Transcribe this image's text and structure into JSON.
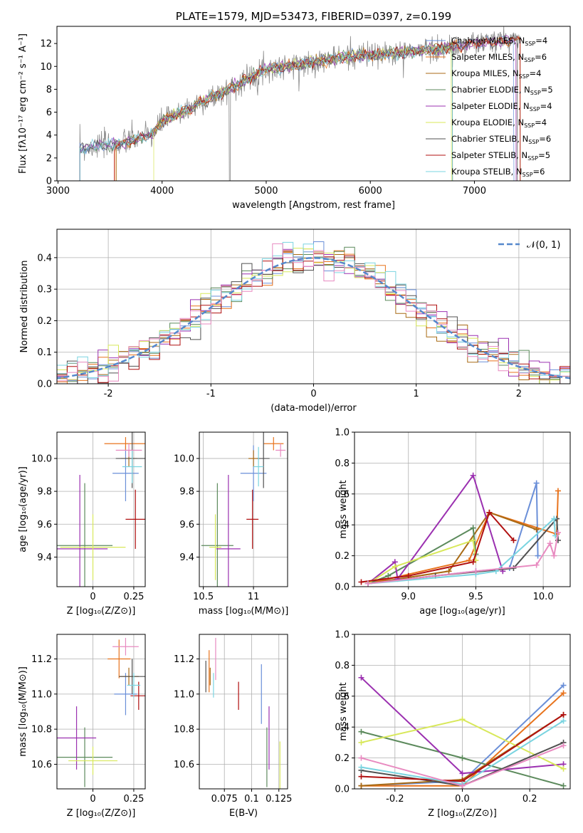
{
  "colors": {
    "Chabrier MILES": "#6a8fd8",
    "Salpeter MILES": "#e8731c",
    "Kroupa MILES": "#a86a14",
    "Chabrier ELODIE": "#5c8a5c",
    "Salpeter ELODIE": "#9b30b0",
    "Kroupa ELODIE": "#d8e85a",
    "Chabrier STELIB": "#505050",
    "Salpeter STELIB": "#b01010",
    "Kroupa STELIB": "#7ad4e0",
    "Extra pink": "#e88ac0",
    "Data gray": "#8a8a8a",
    "Normal": "#5588cc"
  },
  "chart_data": [
    {
      "id": "spectrum",
      "type": "line",
      "title": "PLATE=1579, MJD=53473, FIBERID=0397, z=0.199",
      "xlabel": "wavelength [Angstrom, rest frame]",
      "ylabel": "Flux [fλ10⁻¹⁷ erg cm⁻² s⁻¹ A⁻¹]",
      "xlim": [
        2990,
        7920
      ],
      "ylim": [
        0,
        13.5
      ],
      "xticks": [
        3000,
        4000,
        5000,
        6000,
        7000
      ],
      "yticks": [
        0,
        2,
        4,
        6,
        8,
        10,
        12
      ],
      "grid": false,
      "legend_position": "right",
      "legend": [
        {
          "label": "Chabrier MILES, N",
          "sub": "SSP",
          "suffix": "=4"
        },
        {
          "label": "Salpeter MILES, N",
          "sub": "SSP",
          "suffix": "=6"
        },
        {
          "label": "Kroupa MILES, N",
          "sub": "SSP",
          "suffix": "=4"
        },
        {
          "label": "Chabrier ELODIE, N",
          "sub": "SSP",
          "suffix": "=5"
        },
        {
          "label": "Salpeter ELODIE, N",
          "sub": "SSP",
          "suffix": "=4"
        },
        {
          "label": "Kroupa ELODIE, N",
          "sub": "SSP",
          "suffix": "=4"
        },
        {
          "label": "Chabrier STELIB, N",
          "sub": "SSP",
          "suffix": "=6"
        },
        {
          "label": "Salpeter STELIB, N",
          "sub": "SSP",
          "suffix": "=5"
        },
        {
          "label": "Kroupa STELIB, N",
          "sub": "SSP",
          "suffix": "=6"
        }
      ],
      "continuum": [
        [
          3200,
          2.8
        ],
        [
          3400,
          3.1
        ],
        [
          3600,
          3.2
        ],
        [
          3700,
          3.5
        ],
        [
          3800,
          3.8
        ],
        [
          3900,
          4.0
        ],
        [
          4000,
          5.2
        ],
        [
          4200,
          6.0
        ],
        [
          4400,
          7.0
        ],
        [
          4600,
          7.8
        ],
        [
          4800,
          8.8
        ],
        [
          5000,
          9.8
        ],
        [
          5200,
          10.0
        ],
        [
          5400,
          10.3
        ],
        [
          5600,
          10.6
        ],
        [
          5800,
          10.9
        ],
        [
          6000,
          11.0
        ],
        [
          6200,
          11.1
        ],
        [
          6400,
          11.3
        ],
        [
          6600,
          11.5
        ],
        [
          6800,
          11.7
        ],
        [
          7000,
          12.0
        ],
        [
          7200,
          12.2
        ],
        [
          7400,
          12.4
        ]
      ],
      "model_ranges": [
        [
          3210,
          7380
        ],
        [
          3550,
          7440
        ],
        [
          3560,
          6790
        ],
        [
          3210,
          6790
        ],
        [
          3210,
          7400
        ],
        [
          3920,
          6780
        ],
        [
          3210,
          7410
        ],
        [
          3540,
          7440
        ],
        [
          3210,
          6790
        ]
      ]
    },
    {
      "id": "residuals",
      "type": "histogram",
      "xlabel": "(data-model)/error",
      "ylabel": "Normed distribution",
      "xlim": [
        -2.5,
        2.5
      ],
      "ylim": [
        0,
        0.49
      ],
      "xticks": [
        -2,
        -1,
        0,
        1,
        2
      ],
      "yticks": [
        0.0,
        0.1,
        0.2,
        0.3,
        0.4
      ],
      "grid": true,
      "legend_position": "top-right",
      "legend": [
        "𝒩(0, 1)"
      ],
      "bin_width": 0.1
    },
    {
      "id": "age_vs_Z",
      "type": "errorbar",
      "xlabel": "Z [log₁₀(Z/Z⊙)]",
      "ylabel": "age  [log₁₀(age/yr)]",
      "xlim": [
        -0.22,
        0.32
      ],
      "ylim": [
        9.22,
        10.16
      ],
      "xticks": [
        0.0,
        0.25
      ],
      "yticks": [
        9.4,
        9.6,
        9.8,
        10.0
      ],
      "grid": true,
      "points": [
        {
          "series": "Chabrier MILES",
          "x": 0.2,
          "y": 9.91,
          "xerr": 0.08,
          "yerr": 0.17
        },
        {
          "series": "Salpeter MILES",
          "x": 0.2,
          "y": 10.09,
          "xerr": 0.13,
          "yerr": 0.04
        },
        {
          "series": "Kroupa MILES",
          "x": 0.22,
          "y": 10.0,
          "xerr": 0.05,
          "yerr": 0.05
        },
        {
          "series": "Chabrier ELODIE",
          "x": -0.05,
          "y": 9.47,
          "xerr": 0.17,
          "yerr": 0.38
        },
        {
          "series": "Salpeter ELODIE",
          "x": -0.08,
          "y": 9.45,
          "xerr": 0.17,
          "yerr": 0.45
        },
        {
          "series": "Kroupa ELODIE",
          "x": 0.0,
          "y": 9.46,
          "xerr": 0.2,
          "yerr": 0.2
        },
        {
          "series": "Chabrier STELIB",
          "x": 0.24,
          "y": 10.0,
          "xerr": 0.1,
          "yerr": 0.18
        },
        {
          "series": "Salpeter STELIB",
          "x": 0.26,
          "y": 9.63,
          "xerr": 0.06,
          "yerr": 0.18
        },
        {
          "series": "Kroupa STELIB",
          "x": 0.24,
          "y": 9.95,
          "xerr": 0.06,
          "yerr": 0.1
        },
        {
          "series": "Extra pink",
          "x": 0.22,
          "y": 10.05,
          "xerr": 0.08,
          "yerr": 0.04
        }
      ]
    },
    {
      "id": "age_vs_mass",
      "type": "errorbar",
      "xlabel": "mass [log₁₀(M/M⊙)]",
      "ylabel": "",
      "xlim": [
        10.46,
        11.34
      ],
      "ylim": [
        9.22,
        10.16
      ],
      "xticks": [
        10.5,
        11.0
      ],
      "yticks": [
        9.4,
        9.6,
        9.8,
        10.0
      ],
      "grid": true,
      "points": [
        {
          "series": "Chabrier MILES",
          "x": 11.0,
          "y": 9.91,
          "xerr": 0.13,
          "yerr": 0.17
        },
        {
          "series": "Salpeter MILES",
          "x": 11.2,
          "y": 10.09,
          "xerr": 0.1,
          "yerr": 0.04
        },
        {
          "series": "Kroupa MILES",
          "x": 11.0,
          "y": 10.0,
          "xerr": 0.05,
          "yerr": 0.05
        },
        {
          "series": "Chabrier ELODIE",
          "x": 10.64,
          "y": 9.47,
          "xerr": 0.16,
          "yerr": 0.38
        },
        {
          "series": "Salpeter ELODIE",
          "x": 10.75,
          "y": 9.45,
          "xerr": 0.12,
          "yerr": 0.45
        },
        {
          "series": "Kroupa ELODIE",
          "x": 10.62,
          "y": 9.46,
          "xerr": 0.06,
          "yerr": 0.2
        },
        {
          "series": "Chabrier STELIB",
          "x": 11.1,
          "y": 10.0,
          "xerr": 0.06,
          "yerr": 0.18
        },
        {
          "series": "Salpeter STELIB",
          "x": 10.99,
          "y": 9.63,
          "xerr": 0.06,
          "yerr": 0.18
        },
        {
          "series": "Kroupa STELIB",
          "x": 11.05,
          "y": 9.95,
          "xerr": 0.05,
          "yerr": 0.12
        },
        {
          "series": "Extra pink",
          "x": 11.27,
          "y": 10.05,
          "xerr": 0.05,
          "yerr": 0.04
        }
      ]
    },
    {
      "id": "weights_vs_age",
      "type": "line",
      "xlabel": "age  [log₁₀(age/yr)]",
      "ylabel": "mass weight",
      "xlim": [
        8.6,
        10.2
      ],
      "ylim": [
        0,
        1.0
      ],
      "xticks": [
        9.0,
        9.5,
        10.0
      ],
      "yticks": [
        0.0,
        0.2,
        0.4,
        0.6,
        0.8,
        1.0
      ],
      "grid": true,
      "series": [
        {
          "name": "Chabrier MILES",
          "points": [
            [
              8.7,
              0.02
            ],
            [
              9.5,
              0.1
            ],
            [
              9.75,
              0.12
            ],
            [
              9.95,
              0.67
            ],
            [
              9.96,
              0.2
            ]
          ]
        },
        {
          "name": "Salpeter MILES",
          "points": [
            [
              8.7,
              0.02
            ],
            [
              9.45,
              0.17
            ],
            [
              9.6,
              0.48
            ],
            [
              10.1,
              0.34
            ],
            [
              10.11,
              0.62
            ]
          ]
        },
        {
          "name": "Kroupa MILES",
          "points": [
            [
              8.7,
              0.02
            ],
            [
              9.3,
              0.1
            ],
            [
              9.6,
              0.48
            ],
            [
              9.95,
              0.37
            ]
          ]
        },
        {
          "name": "Chabrier ELODIE",
          "points": [
            [
              8.7,
              0.02
            ],
            [
              8.85,
              0.07
            ],
            [
              9.48,
              0.38
            ],
            [
              9.5,
              0.21
            ]
          ]
        },
        {
          "name": "Salpeter ELODIE",
          "points": [
            [
              8.7,
              0.02
            ],
            [
              8.9,
              0.16
            ],
            [
              8.92,
              0.05
            ],
            [
              9.48,
              0.72
            ],
            [
              9.7,
              0.1
            ]
          ]
        },
        {
          "name": "Kroupa ELODIE",
          "points": [
            [
              8.7,
              0.02
            ],
            [
              8.9,
              0.13
            ],
            [
              9.48,
              0.3
            ],
            [
              9.5,
              0.17
            ]
          ]
        },
        {
          "name": "Chabrier STELIB",
          "points": [
            [
              8.7,
              0.02
            ],
            [
              9.2,
              0.07
            ],
            [
              9.78,
              0.12
            ],
            [
              10.1,
              0.44
            ],
            [
              10.11,
              0.3
            ]
          ]
        },
        {
          "name": "Salpeter STELIB",
          "points": [
            [
              8.65,
              0.03
            ],
            [
              9.0,
              0.07
            ],
            [
              9.48,
              0.16
            ],
            [
              9.6,
              0.48
            ],
            [
              9.78,
              0.3
            ]
          ]
        },
        {
          "name": "Kroupa STELIB",
          "points": [
            [
              8.7,
              0.02
            ],
            [
              9.5,
              0.08
            ],
            [
              9.65,
              0.1
            ],
            [
              10.08,
              0.44
            ],
            [
              10.09,
              0.33
            ]
          ]
        },
        {
          "name": "Extra pink",
          "points": [
            [
              8.7,
              0.02
            ],
            [
              9.5,
              0.1
            ],
            [
              9.95,
              0.14
            ],
            [
              10.05,
              0.28
            ],
            [
              10.08,
              0.2
            ],
            [
              10.11,
              0.35
            ]
          ]
        }
      ]
    },
    {
      "id": "mass_vs_Z",
      "type": "errorbar",
      "xlabel": "Z [log₁₀(Z/Z⊙)]",
      "ylabel": "mass [log₁₀(M/M⊙)]",
      "xlim": [
        -0.22,
        0.32
      ],
      "ylim": [
        10.46,
        11.34
      ],
      "xticks": [
        0.0,
        0.25
      ],
      "yticks": [
        10.6,
        10.8,
        11.0,
        11.2
      ],
      "grid": true,
      "points": [
        {
          "series": "Chabrier MILES",
          "x": 0.2,
          "y": 11.0,
          "xerr": 0.07,
          "yerr": 0.12
        },
        {
          "series": "Salpeter MILES",
          "x": 0.16,
          "y": 11.2,
          "xerr": 0.07,
          "yerr": 0.11
        },
        {
          "series": "Kroupa MILES",
          "x": 0.22,
          "y": 11.1,
          "xerr": 0.06,
          "yerr": 0.05
        },
        {
          "series": "Chabrier ELODIE",
          "x": -0.05,
          "y": 10.64,
          "xerr": 0.17,
          "yerr": 0.17
        },
        {
          "series": "Salpeter ELODIE",
          "x": -0.1,
          "y": 10.75,
          "xerr": 0.12,
          "yerr": 0.18
        },
        {
          "series": "Kroupa ELODIE",
          "x": 0.0,
          "y": 10.62,
          "xerr": 0.15,
          "yerr": 0.08
        },
        {
          "series": "Chabrier STELIB",
          "x": 0.24,
          "y": 11.1,
          "xerr": 0.08,
          "yerr": 0.1
        },
        {
          "series": "Salpeter STELIB",
          "x": 0.28,
          "y": 10.99,
          "xerr": 0.05,
          "yerr": 0.08
        },
        {
          "series": "Kroupa STELIB",
          "x": 0.25,
          "y": 11.05,
          "xerr": 0.04,
          "yerr": 0.07
        },
        {
          "series": "Extra pink",
          "x": 0.2,
          "y": 11.27,
          "xerr": 0.08,
          "yerr": 0.05
        }
      ]
    },
    {
      "id": "mass_vs_EBV",
      "type": "errorbar",
      "xlabel": "E(B-V)",
      "ylabel": "",
      "xlim": [
        0.052,
        0.133
      ],
      "ylim": [
        10.46,
        11.34
      ],
      "xticks": [
        0.075,
        0.1,
        0.125
      ],
      "yticks": [
        10.6,
        10.8,
        11.0,
        11.2
      ],
      "grid": true,
      "points": [
        {
          "series": "Chabrier MILES",
          "x": 0.109,
          "y": 11.0,
          "xerr": 0,
          "yerr": 0.17
        },
        {
          "series": "Salpeter MILES",
          "x": 0.061,
          "y": 11.13,
          "xerr": 0,
          "yerr": 0.12
        },
        {
          "series": "Kroupa MILES",
          "x": 0.062,
          "y": 11.1,
          "xerr": 0,
          "yerr": 0.05
        },
        {
          "series": "Chabrier ELODIE",
          "x": 0.114,
          "y": 10.64,
          "xerr": 0,
          "yerr": 0.17
        },
        {
          "series": "Salpeter ELODIE",
          "x": 0.116,
          "y": 10.75,
          "xerr": 0,
          "yerr": 0.18
        },
        {
          "series": "Kroupa ELODIE",
          "x": 0.126,
          "y": 10.55,
          "xerr": 0,
          "yerr": 0.18
        },
        {
          "series": "Chabrier STELIB",
          "x": 0.058,
          "y": 11.1,
          "xerr": 0,
          "yerr": 0.09
        },
        {
          "series": "Salpeter STELIB",
          "x": 0.088,
          "y": 10.99,
          "xerr": 0,
          "yerr": 0.08
        },
        {
          "series": "Kroupa STELIB",
          "x": 0.065,
          "y": 11.05,
          "xerr": 0,
          "yerr": 0.07
        },
        {
          "series": "Extra pink",
          "x": 0.067,
          "y": 11.2,
          "xerr": 0,
          "yerr": 0.12
        }
      ]
    },
    {
      "id": "weights_vs_Z",
      "type": "line",
      "xlabel": "Z [log₁₀(Z/Z⊙)]",
      "ylabel": "mass weight",
      "xlim": [
        -0.32,
        0.32
      ],
      "ylim": [
        0,
        1.0
      ],
      "xticks": [
        -0.2,
        0.0,
        0.2
      ],
      "yticks": [
        0.0,
        0.2,
        0.4,
        0.6,
        0.8,
        1.0
      ],
      "grid": true,
      "series": [
        {
          "name": "Chabrier MILES",
          "points": [
            [
              -0.3,
              0.02
            ],
            [
              0.0,
              0.05
            ],
            [
              0.3,
              0.67
            ]
          ]
        },
        {
          "name": "Salpeter MILES",
          "points": [
            [
              -0.3,
              0.02
            ],
            [
              0.0,
              0.02
            ],
            [
              0.3,
              0.62
            ]
          ]
        },
        {
          "name": "Kroupa MILES",
          "points": [
            [
              -0.3,
              0.02
            ],
            [
              0.0,
              0.06
            ],
            [
              0.3,
              0.48
            ]
          ]
        },
        {
          "name": "Chabrier ELODIE",
          "points": [
            [
              -0.3,
              0.37
            ],
            [
              0.0,
              0.2
            ],
            [
              0.3,
              0.02
            ]
          ]
        },
        {
          "name": "Salpeter ELODIE",
          "points": [
            [
              -0.3,
              0.72
            ],
            [
              0.0,
              0.1
            ],
            [
              0.3,
              0.16
            ]
          ]
        },
        {
          "name": "Kroupa ELODIE",
          "points": [
            [
              -0.3,
              0.3
            ],
            [
              0.0,
              0.45
            ],
            [
              0.3,
              0.13
            ]
          ]
        },
        {
          "name": "Chabrier STELIB",
          "points": [
            [
              -0.3,
              0.12
            ],
            [
              0.0,
              0.02
            ],
            [
              0.3,
              0.3
            ]
          ]
        },
        {
          "name": "Salpeter STELIB",
          "points": [
            [
              -0.3,
              0.08
            ],
            [
              0.0,
              0.05
            ],
            [
              0.3,
              0.48
            ]
          ]
        },
        {
          "name": "Kroupa STELIB",
          "points": [
            [
              -0.3,
              0.14
            ],
            [
              0.0,
              0.03
            ],
            [
              0.3,
              0.44
            ]
          ]
        },
        {
          "name": "Extra pink",
          "points": [
            [
              -0.3,
              0.2
            ],
            [
              0.0,
              0.02
            ],
            [
              0.3,
              0.28
            ]
          ]
        }
      ]
    }
  ]
}
